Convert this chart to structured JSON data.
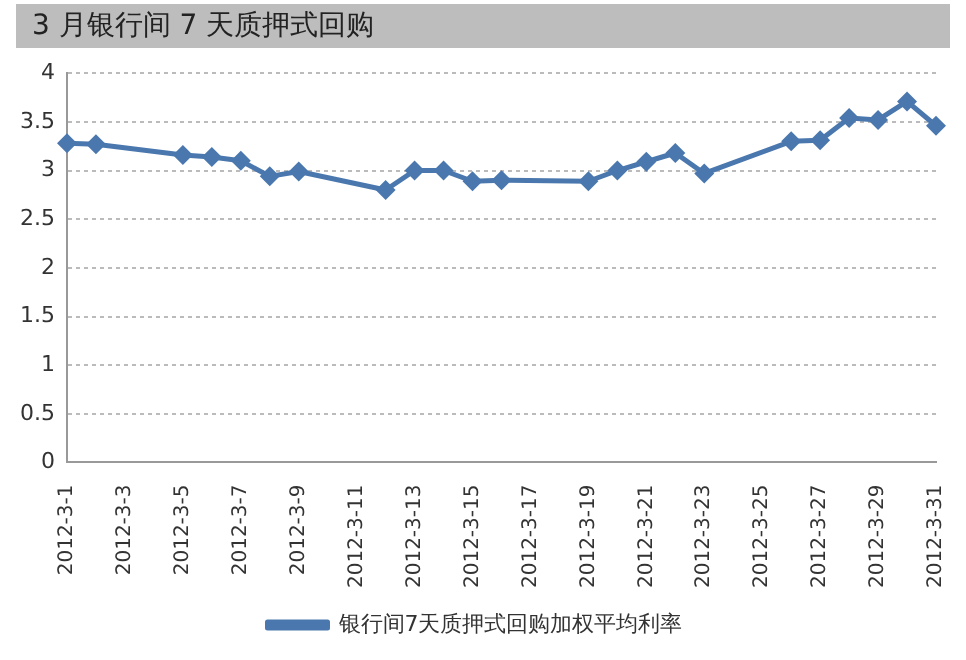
{
  "chart_data": {
    "type": "line",
    "title": "3 月银行间 7 天质押式回购",
    "categories": [
      "2012-3-1",
      null,
      "2012-3-3",
      null,
      "2012-3-5",
      null,
      "2012-3-7",
      null,
      "2012-3-9",
      null,
      "2012-3-11",
      null,
      "2012-3-13",
      null,
      "2012-3-15",
      null,
      "2012-3-17",
      null,
      "2012-3-19",
      null,
      "2012-3-21",
      null,
      "2012-3-23",
      null,
      "2012-3-25",
      null,
      "2012-3-27",
      null,
      "2012-3-29",
      null,
      "2012-3-31"
    ],
    "series": [
      {
        "name": "银行间7天质押式回购加权平均利率",
        "color": "#4a78ae",
        "values": [
          3.28,
          3.27,
          null,
          null,
          3.16,
          3.14,
          3.1,
          2.94,
          2.99,
          null,
          null,
          2.8,
          3.0,
          3.0,
          2.89,
          2.9,
          null,
          null,
          2.89,
          3.0,
          3.09,
          3.18,
          2.97,
          null,
          null,
          3.3,
          3.31,
          3.54,
          3.52,
          3.71,
          3.46
        ]
      }
    ],
    "ylim": [
      0,
      4
    ],
    "yticks": [
      0,
      0.5,
      1,
      1.5,
      2,
      2.5,
      3,
      3.5,
      4
    ],
    "grid": "y",
    "legend": "bottom",
    "marker": "diamond",
    "line_style": "solid"
  }
}
